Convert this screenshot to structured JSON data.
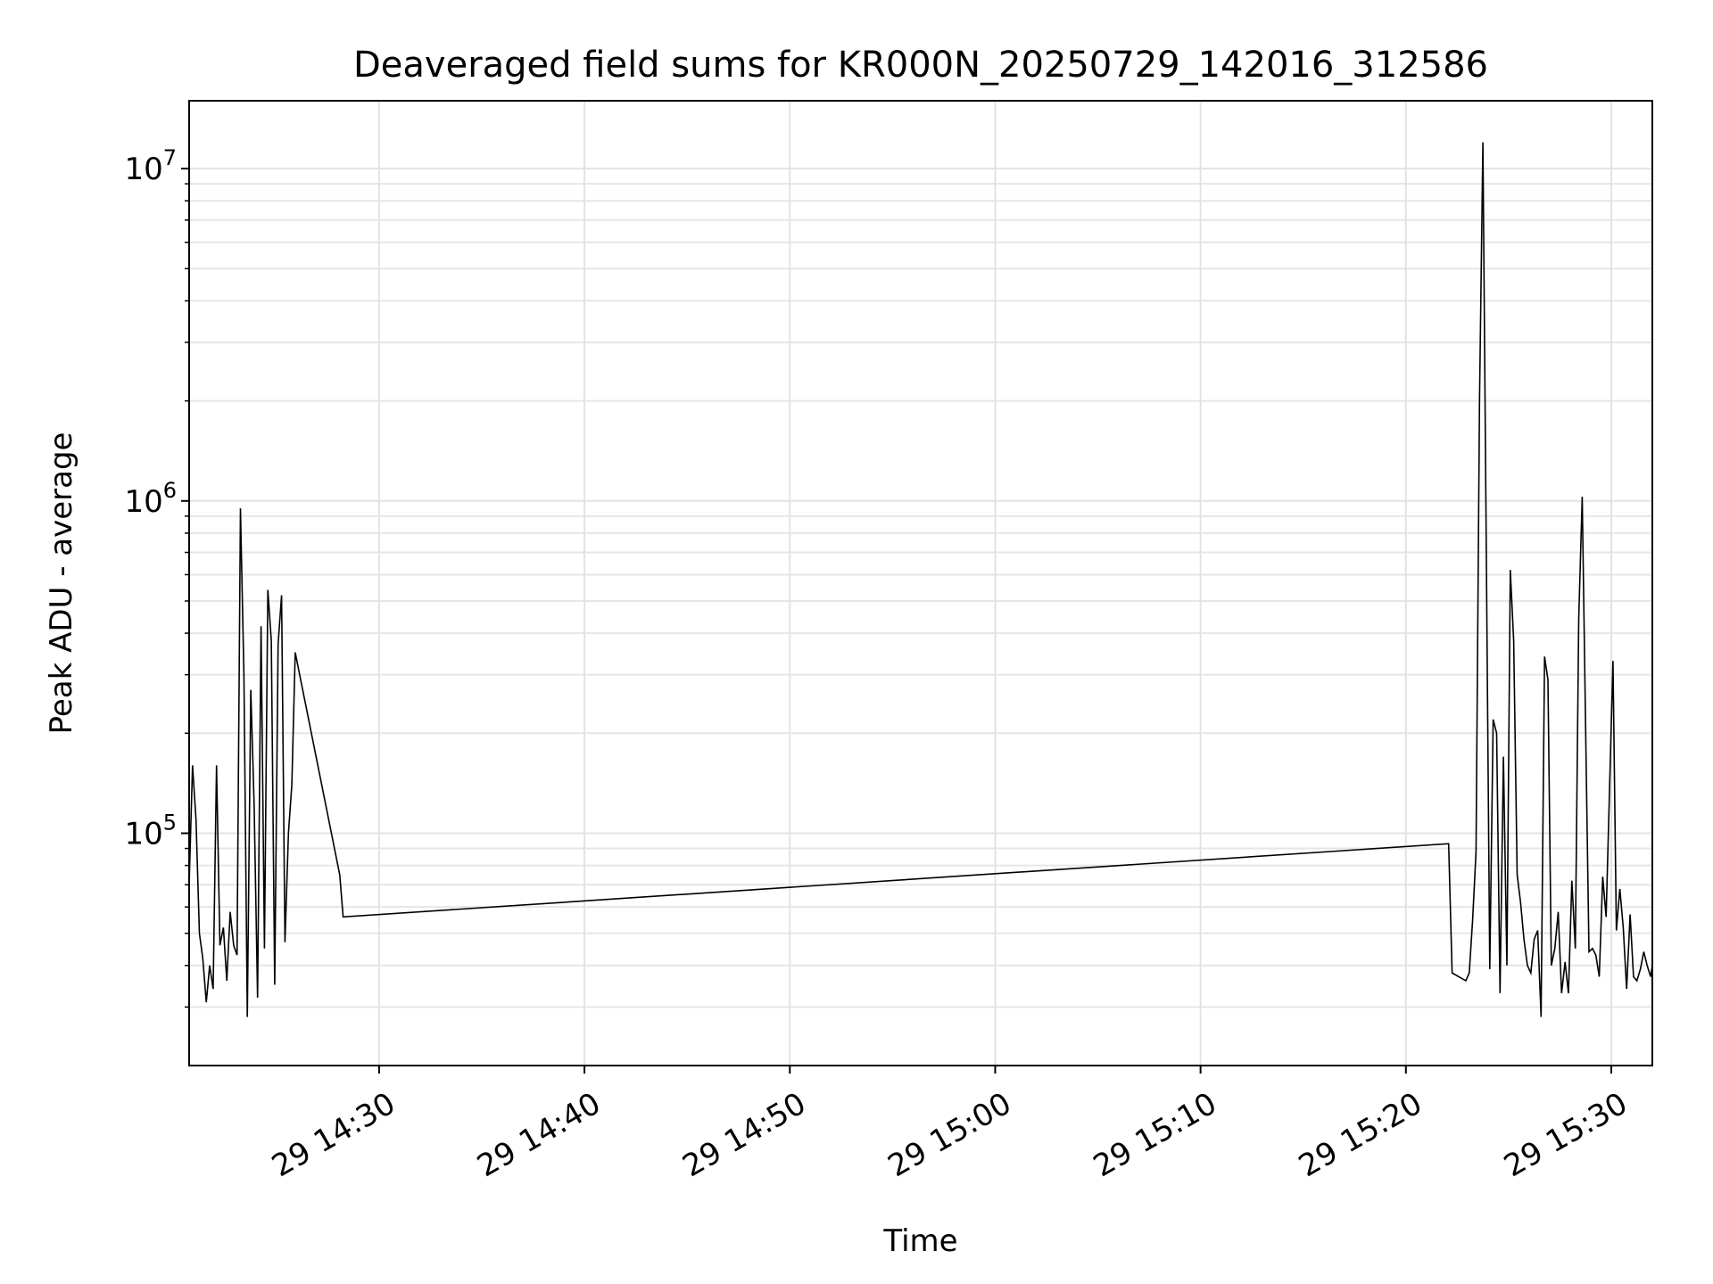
{
  "chart_data": {
    "type": "line",
    "title": "Deaveraged field sums for KR000N_20250729_142016_312586",
    "xlabel": "Time",
    "ylabel": "Peak ADU - average",
    "yscale": "log",
    "grid": "major and minor",
    "line_color": "#000000",
    "xlim": [
      "2025-07-29 14:20:45",
      "2025-07-29 15:32:00"
    ],
    "ylim": [
      20000,
      16000000
    ],
    "x_tick_labels": [
      "29 14:30",
      "29 14:40",
      "29 14:50",
      "29 15:00",
      "29 15:10",
      "29 15:20",
      "29 15:30"
    ],
    "y_tick_values": [
      100000,
      1000000,
      10000000
    ],
    "y_tick_base": "10",
    "y_tick_exponents": [
      "5",
      "6",
      "7"
    ],
    "series": [
      {
        "x": [
          "2025-07-29 14:20:45",
          "2025-07-29 14:20:55",
          "2025-07-29 14:21:05",
          "2025-07-29 14:21:15",
          "2025-07-29 14:21:25",
          "2025-07-29 14:21:35",
          "2025-07-29 14:21:45",
          "2025-07-29 14:21:55",
          "2025-07-29 14:22:05",
          "2025-07-29 14:22:15",
          "2025-07-29 14:22:25",
          "2025-07-29 14:22:35",
          "2025-07-29 14:22:45",
          "2025-07-29 14:22:55",
          "2025-07-29 14:23:05",
          "2025-07-29 14:23:15",
          "2025-07-29 14:23:25",
          "2025-07-29 14:23:35",
          "2025-07-29 14:23:45",
          "2025-07-29 14:23:55",
          "2025-07-29 14:24:05",
          "2025-07-29 14:24:15",
          "2025-07-29 14:24:25",
          "2025-07-29 14:24:35",
          "2025-07-29 14:24:45",
          "2025-07-29 14:24:55",
          "2025-07-29 14:25:05",
          "2025-07-29 14:25:15",
          "2025-07-29 14:25:25",
          "2025-07-29 14:25:35",
          "2025-07-29 14:25:45",
          "2025-07-29 14:25:55",
          "2025-07-29 14:26:05",
          "2025-07-29 14:28:05",
          "2025-07-29 14:28:15",
          "2025-07-29 15:22:05",
          "2025-07-29 15:22:15",
          "2025-07-29 15:22:55",
          "2025-07-29 15:23:05",
          "2025-07-29 15:23:15",
          "2025-07-29 15:23:25",
          "2025-07-29 15:23:35",
          "2025-07-29 15:23:45",
          "2025-07-29 15:24:05",
          "2025-07-29 15:24:15",
          "2025-07-29 15:24:25",
          "2025-07-29 15:24:35",
          "2025-07-29 15:24:45",
          "2025-07-29 15:24:55",
          "2025-07-29 15:25:05",
          "2025-07-29 15:25:15",
          "2025-07-29 15:25:25",
          "2025-07-29 15:25:35",
          "2025-07-29 15:25:45",
          "2025-07-29 15:25:55",
          "2025-07-29 15:26:05",
          "2025-07-29 15:26:15",
          "2025-07-29 15:26:25",
          "2025-07-29 15:26:35",
          "2025-07-29 15:26:45",
          "2025-07-29 15:26:55",
          "2025-07-29 15:27:05",
          "2025-07-29 15:27:15",
          "2025-07-29 15:27:25",
          "2025-07-29 15:27:35",
          "2025-07-29 15:27:45",
          "2025-07-29 15:27:55",
          "2025-07-29 15:28:05",
          "2025-07-29 15:28:15",
          "2025-07-29 15:28:25",
          "2025-07-29 15:28:35",
          "2025-07-29 15:28:45",
          "2025-07-29 15:28:55",
          "2025-07-29 15:29:05",
          "2025-07-29 15:29:15",
          "2025-07-29 15:29:25",
          "2025-07-29 15:29:35",
          "2025-07-29 15:29:45",
          "2025-07-29 15:30:05",
          "2025-07-29 15:30:15",
          "2025-07-29 15:30:25",
          "2025-07-29 15:30:35",
          "2025-07-29 15:30:45",
          "2025-07-29 15:30:55",
          "2025-07-29 15:31:05",
          "2025-07-29 15:31:15",
          "2025-07-29 15:31:25",
          "2025-07-29 15:31:35",
          "2025-07-29 15:31:45",
          "2025-07-29 15:31:55",
          "2025-07-29 15:32:00"
        ],
        "y": [
          70000,
          160000,
          110000,
          50000,
          42000,
          31000,
          40000,
          34000,
          160000,
          46000,
          52000,
          36000,
          58000,
          46000,
          43000,
          950000,
          300000,
          28000,
          270000,
          120000,
          32000,
          420000,
          45000,
          540000,
          380000,
          35000,
          370000,
          520000,
          47000,
          100000,
          140000,
          350000,
          310000,
          75000,
          56000,
          93000,
          38000,
          36000,
          38000,
          55000,
          88000,
          2000000,
          12000000,
          39000,
          220000,
          200000,
          33000,
          170000,
          40000,
          620000,
          380000,
          75000,
          62000,
          48000,
          40000,
          38000,
          48000,
          51000,
          28000,
          340000,
          290000,
          40000,
          45000,
          58000,
          33000,
          41000,
          33000,
          72000,
          45000,
          440000,
          1030000,
          210000,
          44000,
          45000,
          43000,
          37000,
          74000,
          56000,
          330000,
          51000,
          68000,
          52000,
          34000,
          57000,
          37000,
          36000,
          39000,
          44000,
          40000,
          37000,
          40000
        ]
      }
    ]
  }
}
